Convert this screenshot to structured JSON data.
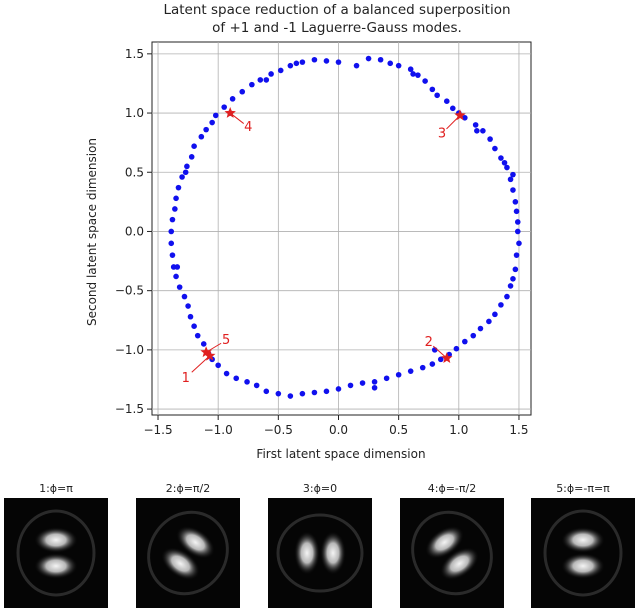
{
  "chart_data": {
    "type": "scatter",
    "title_lines": [
      "Latent space reduction of a balanced superposition",
      "of +1 and -1 Laguerre-Gauss modes."
    ],
    "xlabel": "First latent space dimension",
    "ylabel": "Second latent space dimension",
    "xlim": [
      -1.55,
      1.6
    ],
    "ylim": [
      -1.55,
      1.6
    ],
    "xticks": [
      -1.5,
      -1.0,
      -0.5,
      0.0,
      0.5,
      1.0,
      1.5
    ],
    "xtick_labels": [
      "−1.5",
      "−1.0",
      "−0.5",
      "0.0",
      "0.5",
      "1.0",
      "1.5"
    ],
    "yticks": [
      -1.5,
      -1.0,
      -0.5,
      0.0,
      0.5,
      1.0,
      1.5
    ],
    "ytick_labels": [
      "−1.5",
      "−1.0",
      "−0.5",
      "0.0",
      "0.5",
      "1.0",
      "1.5"
    ],
    "grid": true,
    "point_color": "#1010ee",
    "marker_color": "#e02020",
    "points": [
      [
        1.47,
        -0.32
      ],
      [
        1.48,
        -0.2
      ],
      [
        1.5,
        -0.1
      ],
      [
        1.49,
        0.0
      ],
      [
        1.49,
        0.08
      ],
      [
        1.48,
        0.17
      ],
      [
        1.47,
        0.25
      ],
      [
        1.45,
        0.35
      ],
      [
        1.43,
        0.44
      ],
      [
        1.4,
        0.54
      ],
      [
        1.35,
        0.62
      ],
      [
        1.3,
        0.7
      ],
      [
        1.26,
        0.78
      ],
      [
        1.2,
        0.85
      ],
      [
        1.14,
        0.9
      ],
      [
        1.05,
        0.96
      ],
      [
        1.0,
        1.0
      ],
      [
        0.95,
        1.04
      ],
      [
        0.9,
        1.1
      ],
      [
        0.82,
        1.15
      ],
      [
        0.78,
        1.2
      ],
      [
        0.72,
        1.27
      ],
      [
        0.66,
        1.32
      ],
      [
        0.6,
        1.37
      ],
      [
        0.5,
        1.4
      ],
      [
        0.43,
        1.42
      ],
      [
        0.35,
        1.45
      ],
      [
        0.25,
        1.46
      ],
      [
        0.15,
        1.4
      ],
      [
        0.0,
        1.43
      ],
      [
        -0.1,
        1.44
      ],
      [
        -0.2,
        1.45
      ],
      [
        -0.3,
        1.43
      ],
      [
        -0.4,
        1.4
      ],
      [
        -0.48,
        1.36
      ],
      [
        -0.56,
        1.33
      ],
      [
        -0.65,
        1.28
      ],
      [
        -0.72,
        1.24
      ],
      [
        -0.8,
        1.18
      ],
      [
        -0.88,
        1.12
      ],
      [
        -0.95,
        1.05
      ],
      [
        -1.02,
        0.98
      ],
      [
        -1.05,
        0.92
      ],
      [
        -1.1,
        0.86
      ],
      [
        -1.14,
        0.8
      ],
      [
        -1.2,
        0.72
      ],
      [
        -1.22,
        0.63
      ],
      [
        -1.26,
        0.55
      ],
      [
        -1.3,
        0.46
      ],
      [
        -1.33,
        0.37
      ],
      [
        -1.35,
        0.28
      ],
      [
        -1.36,
        0.19
      ],
      [
        -1.38,
        0.1
      ],
      [
        -1.39,
        0.0
      ],
      [
        -1.39,
        -0.1
      ],
      [
        -1.38,
        -0.2
      ],
      [
        -1.37,
        -0.3
      ],
      [
        -1.35,
        -0.38
      ],
      [
        -1.32,
        -0.47
      ],
      [
        -1.28,
        -0.55
      ],
      [
        -1.25,
        -0.63
      ],
      [
        -1.23,
        -0.72
      ],
      [
        -1.2,
        -0.8
      ],
      [
        -1.17,
        -0.88
      ],
      [
        -1.12,
        -0.95
      ],
      [
        -1.08,
        -1.03
      ],
      [
        -1.05,
        -1.08
      ],
      [
        -1.0,
        -1.13
      ],
      [
        -0.93,
        -1.2
      ],
      [
        -0.85,
        -1.24
      ],
      [
        -0.76,
        -1.27
      ],
      [
        -0.68,
        -1.3
      ],
      [
        -0.6,
        -1.35
      ],
      [
        -0.5,
        -1.37
      ],
      [
        -0.4,
        -1.39
      ],
      [
        -0.3,
        -1.37
      ],
      [
        -0.2,
        -1.36
      ],
      [
        -0.1,
        -1.35
      ],
      [
        0.0,
        -1.33
      ],
      [
        0.1,
        -1.3
      ],
      [
        0.2,
        -1.28
      ],
      [
        0.3,
        -1.27
      ],
      [
        0.4,
        -1.24
      ],
      [
        0.5,
        -1.21
      ],
      [
        0.6,
        -1.18
      ],
      [
        0.7,
        -1.15
      ],
      [
        0.78,
        -1.12
      ],
      [
        0.85,
        -1.08
      ],
      [
        0.92,
        -1.04
      ],
      [
        0.98,
        -0.99
      ],
      [
        1.05,
        -0.93
      ],
      [
        1.12,
        -0.88
      ],
      [
        1.18,
        -0.82
      ],
      [
        1.25,
        -0.76
      ],
      [
        1.3,
        -0.7
      ],
      [
        1.35,
        -0.62
      ],
      [
        1.4,
        -0.55
      ],
      [
        1.43,
        -0.46
      ],
      [
        1.45,
        -0.4
      ],
      [
        0.8,
        -1.0
      ],
      [
        1.15,
        0.85
      ],
      [
        -0.6,
        1.28
      ],
      [
        -1.27,
        0.5
      ],
      [
        -1.34,
        -0.3
      ],
      [
        0.3,
        -1.32
      ],
      [
        -0.35,
        1.42
      ],
      [
        0.62,
        1.33
      ],
      [
        1.38,
        0.58
      ],
      [
        1.45,
        0.48
      ],
      [
        -0.9,
        1.0
      ]
    ],
    "markers": [
      {
        "label": "1",
        "x": -1.07,
        "y": -1.05
      },
      {
        "label": "2",
        "x": 0.9,
        "y": -1.07
      },
      {
        "label": "3",
        "x": 1.01,
        "y": 0.98
      },
      {
        "label": "4",
        "x": -0.9,
        "y": 1.0
      },
      {
        "label": "5",
        "x": -1.1,
        "y": -1.02
      }
    ]
  },
  "panels": [
    {
      "title": "1:ϕ=π"
    },
    {
      "title": "2:ϕ=π/2"
    },
    {
      "title": "3:ϕ=0"
    },
    {
      "title": "4:ϕ=-π/2"
    },
    {
      "title": "5:ϕ=-π=π"
    }
  ]
}
